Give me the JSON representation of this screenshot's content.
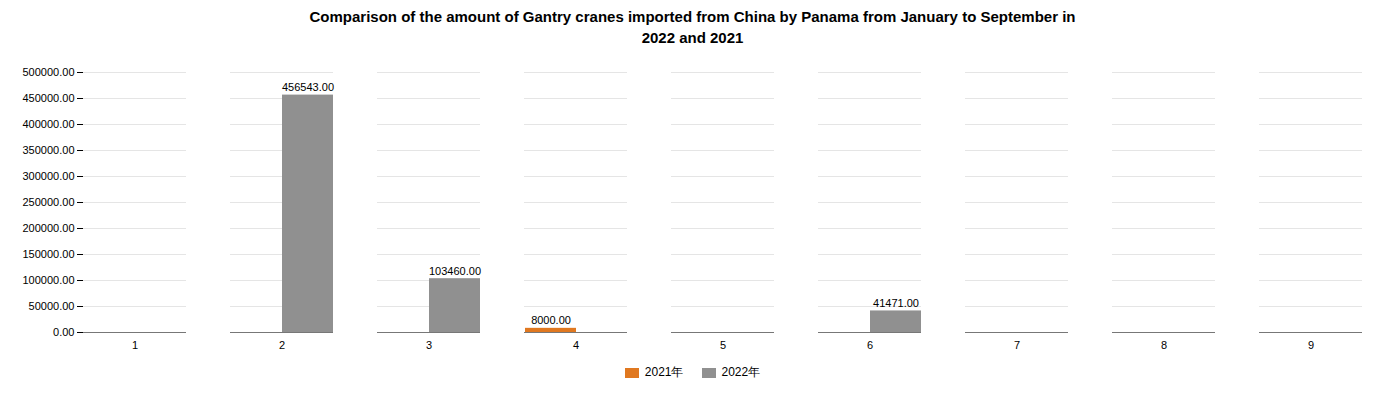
{
  "chart_data": {
    "type": "bar",
    "title": "Comparison of the amount of Gantry cranes imported from China by Panama from January to September in\n2022 and 2021",
    "categories": [
      1,
      2,
      3,
      4,
      5,
      6,
      7,
      8,
      9
    ],
    "series": [
      {
        "name": "2021年",
        "color": "#E07820",
        "values": [
          0,
          0,
          0,
          8000,
          0,
          0,
          0,
          0,
          0
        ],
        "value_labels": [
          null,
          null,
          null,
          "8000.00",
          null,
          null,
          null,
          null,
          null
        ]
      },
      {
        "name": "2022年",
        "color": "#909090",
        "values": [
          0,
          456543,
          103460,
          0,
          0,
          41471,
          0,
          0,
          0
        ],
        "value_labels": [
          null,
          "456543.00",
          "103460.00",
          null,
          null,
          "41471.00",
          null,
          null,
          null
        ]
      }
    ],
    "ylim": [
      0,
      500000
    ],
    "yticks": [
      {
        "value": 0,
        "label": "0.00"
      },
      {
        "value": 50000,
        "label": "50000.00"
      },
      {
        "value": 100000,
        "label": "100000.00"
      },
      {
        "value": 150000,
        "label": "150000.00"
      },
      {
        "value": 200000,
        "label": "200000.00"
      },
      {
        "value": 250000,
        "label": "250000.00"
      },
      {
        "value": 300000,
        "label": "300000.00"
      },
      {
        "value": 350000,
        "label": "350000.00"
      },
      {
        "value": 400000,
        "label": "400000.00"
      },
      {
        "value": 450000,
        "label": "450000.00"
      },
      {
        "value": 500000,
        "label": "500000.00"
      }
    ],
    "grid": true,
    "legend": "bottom",
    "data_labels": true
  }
}
